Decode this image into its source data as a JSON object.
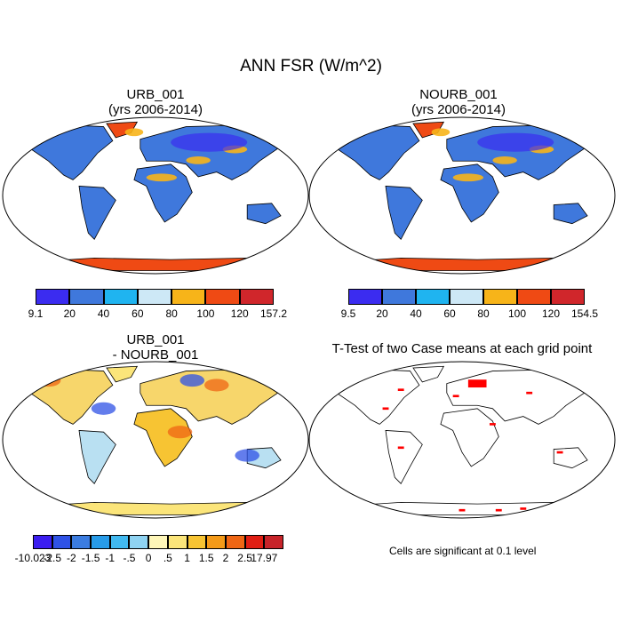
{
  "main_title": "ANN FSR (W/m^2)",
  "panels": {
    "top_left": {
      "title1": "URB_001",
      "title2": "(yrs 2006-2014)"
    },
    "top_right": {
      "title1": "NOURB_001",
      "title2": "(yrs 2006-2014)"
    },
    "bottom_left": {
      "title1": "URB_001",
      "title2": "- NOURB_001"
    },
    "bottom_right": {
      "title1": "T-Test of two Case means at each grid point",
      "note": "Cells are significant at 0.1 level"
    }
  },
  "colorbars": {
    "top_left": {
      "labels": [
        "9.1",
        "20",
        "40",
        "60",
        "80",
        "100",
        "120",
        "157.2"
      ],
      "colors": [
        "#3b2cf0",
        "#3f78dc",
        "#1fb4f0",
        "#cde8f6",
        "#f7b419",
        "#ef4a14",
        "#d0262b"
      ]
    },
    "top_right": {
      "labels": [
        "9.5",
        "20",
        "40",
        "60",
        "80",
        "100",
        "120",
        "154.5"
      ],
      "colors": [
        "#3b2cf0",
        "#3f78dc",
        "#1fb4f0",
        "#cde8f6",
        "#f7b419",
        "#ef4a14",
        "#d0262b"
      ]
    },
    "bottom_left": {
      "labels": [
        "-10.023",
        "-2.5",
        "-2",
        "-1.5",
        "-1",
        "-.5",
        "0",
        ".5",
        "1",
        "1.5",
        "2",
        "2.5",
        "17.97"
      ],
      "colors": [
        "#3b1df0",
        "#2f52e6",
        "#3b7ce0",
        "#279be8",
        "#41b9f0",
        "#8fd3f2",
        "#fef6b8",
        "#fbe57a",
        "#f7c433",
        "#f49a18",
        "#ef6614",
        "#e01e13",
        "#c72329"
      ]
    }
  },
  "legend_colors": {
    "significant": "#ff0000",
    "coast": "#000000"
  }
}
